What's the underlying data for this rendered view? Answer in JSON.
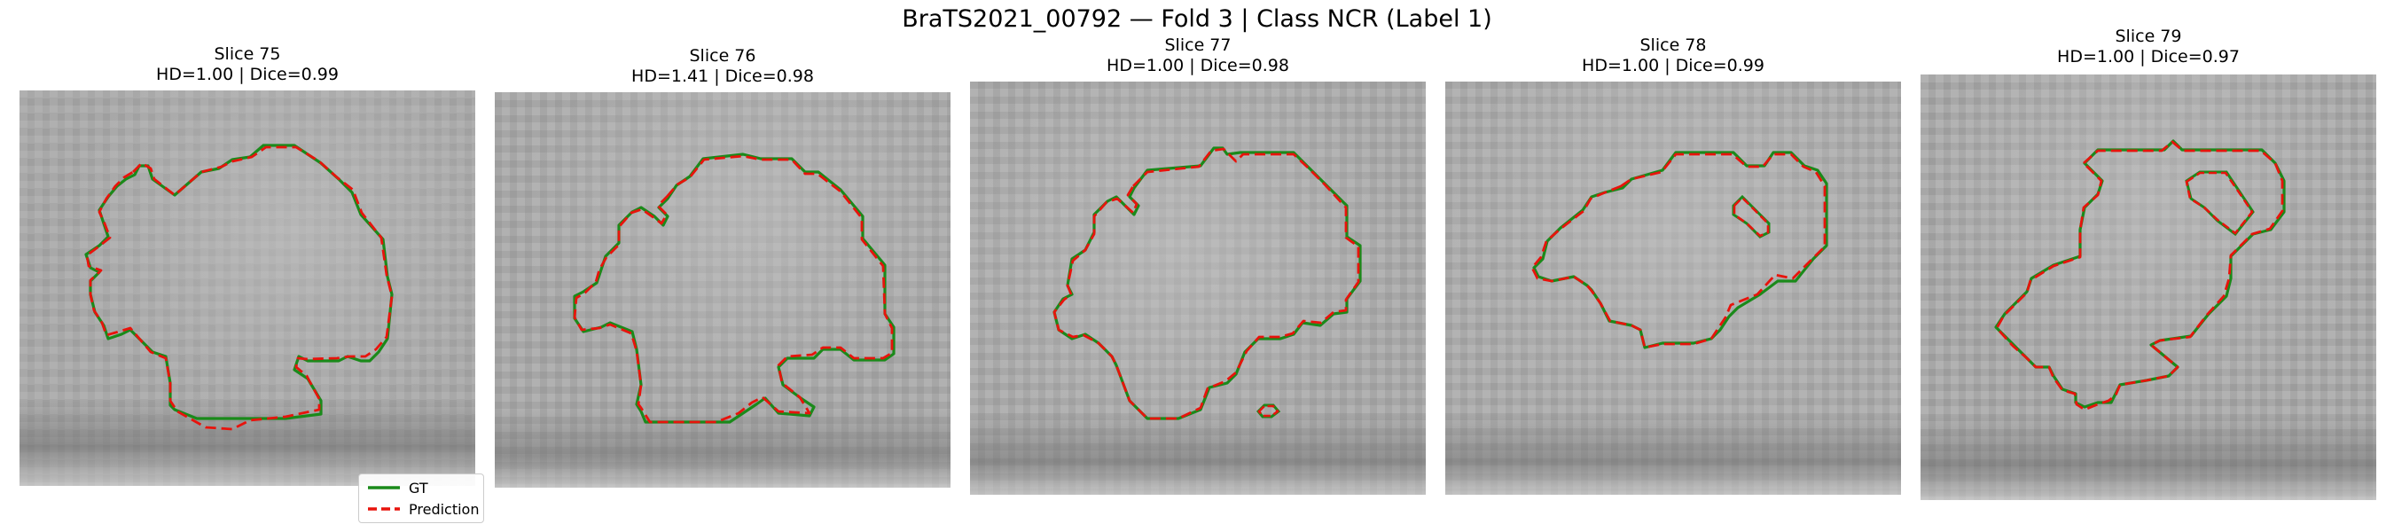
{
  "figure": {
    "title": "BraTS2021_00792 — Fold 3 | Class NCR (Label 1)"
  },
  "panels": [
    {
      "slice": "Slice 75",
      "metrics": "HD=1.00 | Dice=0.99"
    },
    {
      "slice": "Slice 76",
      "metrics": "HD=1.41 | Dice=0.98"
    },
    {
      "slice": "Slice 77",
      "metrics": "HD=1.00 | Dice=0.98"
    },
    {
      "slice": "Slice 78",
      "metrics": "HD=1.00 | Dice=0.99"
    },
    {
      "slice": "Slice 79",
      "metrics": "HD=1.00 | Dice=0.97"
    }
  ],
  "legend": {
    "gt_label": "GT",
    "prediction_label": "Prediction"
  },
  "colors": {
    "gt": "#1a8a1a",
    "prediction": "#e8130c",
    "background": "#a9a9a9"
  }
}
